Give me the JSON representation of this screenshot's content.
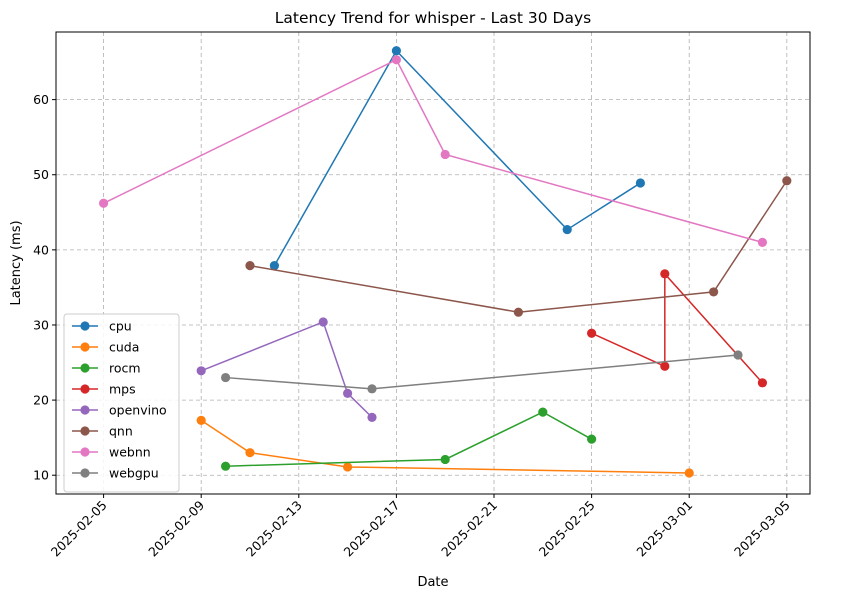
{
  "chart_data": {
    "type": "line",
    "title": "Latency Trend for whisper - Last 30 Days",
    "xlabel": "Date",
    "ylabel": "Latency (ms)",
    "x_ticks": [
      "2025-02-05",
      "2025-02-09",
      "2025-02-13",
      "2025-02-17",
      "2025-02-21",
      "2025-02-25",
      "2025-03-01",
      "2025-03-05"
    ],
    "y_ticks": [
      10,
      20,
      30,
      40,
      50,
      60
    ],
    "xlim": [
      "2025-02-04",
      "2025-03-05"
    ],
    "ylim": [
      7.5,
      69
    ],
    "grid": true,
    "legend_position": "lower-left",
    "series": [
      {
        "name": "cpu",
        "color": "#1f77b4",
        "points": [
          [
            "2025-02-12",
            37.9
          ],
          [
            "2025-02-17",
            66.5
          ],
          [
            "2025-02-24",
            42.7
          ],
          [
            "2025-02-27",
            48.9
          ]
        ]
      },
      {
        "name": "cuda",
        "color": "#ff7f0e",
        "points": [
          [
            "2025-02-09",
            17.3
          ],
          [
            "2025-02-11",
            13.0
          ],
          [
            "2025-02-15",
            11.1
          ],
          [
            "2025-03-01",
            10.3
          ]
        ]
      },
      {
        "name": "rocm",
        "color": "#2ca02c",
        "points": [
          [
            "2025-02-10",
            11.2
          ],
          [
            "2025-02-19",
            12.1
          ],
          [
            "2025-02-23",
            18.4
          ],
          [
            "2025-02-25",
            14.8
          ]
        ]
      },
      {
        "name": "mps",
        "color": "#d62728",
        "points": [
          [
            "2025-02-25",
            28.9
          ],
          [
            "2025-02-28",
            24.5
          ],
          [
            "2025-02-28",
            36.8
          ],
          [
            "2025-03-04",
            22.3
          ]
        ]
      },
      {
        "name": "openvino",
        "color": "#9467bd",
        "points": [
          [
            "2025-02-09",
            23.9
          ],
          [
            "2025-02-14",
            30.4
          ],
          [
            "2025-02-15",
            20.9
          ],
          [
            "2025-02-16",
            17.7
          ]
        ]
      },
      {
        "name": "qnn",
        "color": "#8c564b",
        "points": [
          [
            "2025-02-11",
            37.9
          ],
          [
            "2025-02-22",
            31.7
          ],
          [
            "2025-03-02",
            34.4
          ],
          [
            "2025-03-05",
            49.2
          ]
        ]
      },
      {
        "name": "webnn",
        "color": "#e377c2",
        "points": [
          [
            "2025-02-05",
            46.2
          ],
          [
            "2025-02-17",
            65.3
          ],
          [
            "2025-02-19",
            52.7
          ],
          [
            "2025-03-04",
            41.0
          ]
        ]
      },
      {
        "name": "webgpu",
        "color": "#7f7f7f",
        "points": [
          [
            "2025-02-10",
            23.0
          ],
          [
            "2025-02-16",
            21.5
          ],
          [
            "2025-03-03",
            26.0
          ]
        ]
      }
    ]
  }
}
